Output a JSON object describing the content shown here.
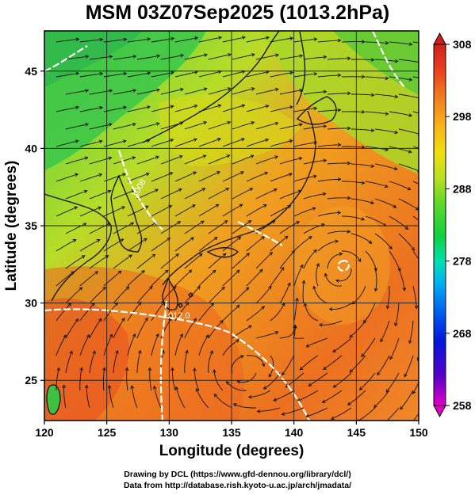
{
  "title": "MSM 03Z07Sep2025 (1013.2hPa)",
  "axes": {
    "xlabel": "Longitude (degrees)",
    "ylabel": "Latitude  (degrees)",
    "x_ticks": [
      "120",
      "125",
      "130",
      "135",
      "140",
      "145",
      "150"
    ],
    "y_ticks": [
      "25",
      "30",
      "35",
      "40",
      "45"
    ]
  },
  "colorbar": {
    "min": 258,
    "max": 308,
    "labels": [
      "308",
      "298",
      "288",
      "278",
      "268",
      "258"
    ],
    "colors": [
      "#e200c8",
      "#5a00c8",
      "#0018d8",
      "#0060f0",
      "#00b0f0",
      "#00e0b0",
      "#10d040",
      "#60d828",
      "#b8e020",
      "#f0e010",
      "#f8b018",
      "#f07820",
      "#e84020",
      "#d02018"
    ]
  },
  "contour_labels": [
    "1008",
    "1012.0"
  ],
  "map": {
    "gridlines": true,
    "lon_range": [
      120,
      150
    ],
    "lat_range": [
      22.4,
      47.6
    ],
    "fields": [
      "potential temperature (shaded)",
      "streamlines",
      "pressure contours (white)"
    ]
  },
  "credits": {
    "line1": "Drawing by DCL (https://www.gfd-dennou.org/library/dcl/)",
    "line2": "Data from http://database.rish.kyoto-u.ac.jp/arch/jmadata/"
  }
}
